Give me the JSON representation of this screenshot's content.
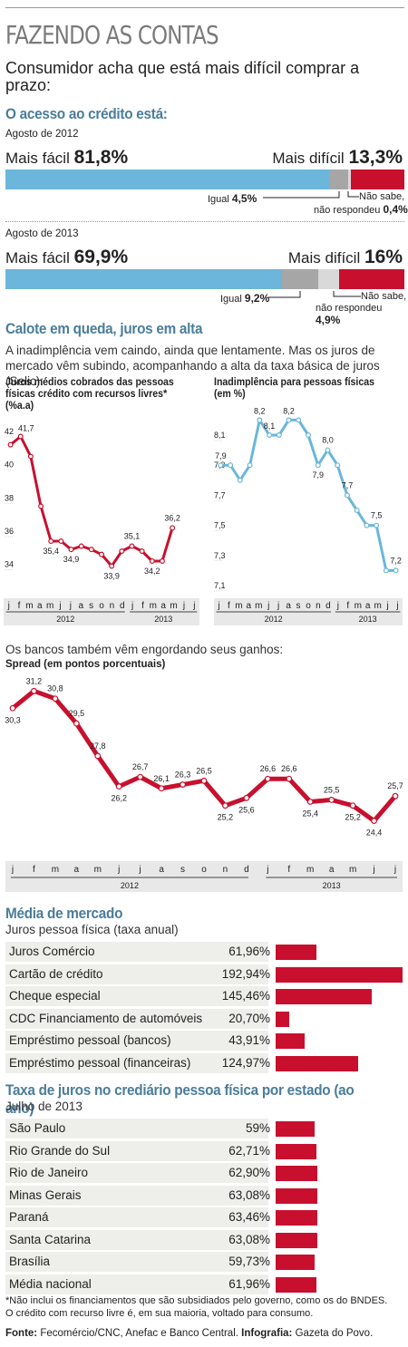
{
  "header": {
    "title": "FAZENDO AS CONTAS",
    "subtitle": "Consumidor acha que está mais difícil comprar a prazo:"
  },
  "credit_access": {
    "heading": "O acesso ao crédito está:",
    "year1": {
      "period": "Agosto de 2012",
      "easier_label": "Mais fácil",
      "easier_value": "81,8%",
      "harder_label": "Mais difícil",
      "harder_value": "13,3%",
      "equal_label": "Igual",
      "equal_value": "4,5%",
      "nao_sabe_1": "Não sabe,",
      "nao_sabe_2": "não respondeu",
      "nao_sabe_value": "0,4%"
    },
    "year2": {
      "period": "Agosto de 2013",
      "easier_label": "Mais fácil",
      "easier_value": "69,9%",
      "harder_label": "Mais difícil",
      "harder_value": "16%",
      "equal_label": "Igual",
      "equal_value": "9,2%",
      "nao_sabe_1": "Não sabe,",
      "nao_sabe_2": "não respondeu",
      "nao_sabe_value": "4,9%"
    },
    "colors": {
      "easier": "#6bb6da",
      "equal": "#a6a6a6",
      "unknown": "#d9d9d9",
      "harder": "#c8102e"
    }
  },
  "section2": {
    "heading": "Calote em queda, juros em alta",
    "paragraph": "A inadimplência vem caindo, ainda que lentamente. Mas os juros de mercado vêm subindo, acompanhando a alta da taxa básica de juros (Selic):",
    "bank_text": "Os bancos também vêm engordando seus ganhos:"
  },
  "months": [
    "j",
    "f",
    "m",
    "a",
    "m",
    "j",
    "j",
    "a",
    "s",
    "o",
    "n",
    "d",
    "j",
    "f",
    "m",
    "a",
    "m",
    "j",
    "j"
  ],
  "years": [
    "2012",
    "2013"
  ],
  "chart_data": [
    {
      "type": "line",
      "title": "Juros médios cobrados das pessoas físicas crédito com recursos livres* (%a.a)",
      "color": "#c8102e",
      "y": [
        41.2,
        41.7,
        40.5,
        37.5,
        35.4,
        35.4,
        34.9,
        35.1,
        34.9,
        34.6,
        33.9,
        34.8,
        35.1,
        34.8,
        34.2,
        34.2,
        36.2
      ],
      "labels": [
        "",
        "41,7",
        "",
        "",
        "35,4",
        "",
        "34,9",
        "",
        "",
        "",
        "33,9",
        "",
        "35,1",
        "",
        "34,2",
        "",
        "36,2"
      ],
      "yticks": [
        "42",
        "40",
        "38",
        "36",
        "34"
      ],
      "ylim": [
        34,
        42
      ]
    },
    {
      "type": "line",
      "title": "Inadimplência para pessoas físicas (em %)",
      "color": "#6bb6da",
      "y": [
        7.9,
        7.9,
        7.8,
        7.9,
        8.2,
        8.1,
        8.1,
        8.2,
        8.2,
        8.1,
        7.9,
        8.0,
        7.9,
        7.7,
        7.6,
        7.5,
        7.5,
        7.2,
        7.2
      ],
      "labels": [
        "7,9",
        "",
        "",
        "",
        "8,2",
        "8,1",
        "",
        "8,2",
        "",
        "",
        "7,9",
        "8,0",
        "",
        "7,7",
        "",
        "",
        "7,5",
        "",
        "7,2"
      ],
      "yticks": [
        "8,1",
        "7,9",
        "7,7",
        "7,5",
        "7,3",
        "7,1"
      ],
      "ylim": [
        7.1,
        8.1
      ]
    },
    {
      "type": "line",
      "title": "Spread (em pontos porcentuais)",
      "color": "#c8102e",
      "y": [
        30.3,
        31.2,
        30.8,
        29.5,
        27.8,
        26.2,
        26.7,
        26.1,
        26.3,
        26.5,
        25.2,
        25.6,
        26.6,
        26.6,
        25.4,
        25.5,
        25.2,
        24.4,
        25.7
      ],
      "labels": [
        "30,3",
        "31,2",
        "30,8",
        "29,5",
        "27,8",
        "26,2",
        "26,7",
        "26,1",
        "26,3",
        "26,5",
        "25,2",
        "25,6",
        "26,6",
        "26,6",
        "25,4",
        "25,5",
        "25,2",
        "24,4",
        "25,7"
      ]
    }
  ],
  "market": {
    "heading": "Média de mercado",
    "subheading": "Juros pessoa física (taxa anual)",
    "rows": [
      {
        "name": "Juros Comércio",
        "value": "61,96%",
        "num": 61.96
      },
      {
        "name": "Cartão de crédito",
        "value": "192,94%",
        "num": 192.94
      },
      {
        "name": "Cheque especial",
        "value": "145,46%",
        "num": 145.46
      },
      {
        "name": "CDC Financiamento de automóveis",
        "value": "20,70%",
        "num": 20.7
      },
      {
        "name": "Empréstimo pessoal (bancos)",
        "value": "43,91%",
        "num": 43.91
      },
      {
        "name": "Empréstimo pessoal (financeiras)",
        "value": "124,97%",
        "num": 124.97
      }
    ]
  },
  "states": {
    "heading": "Taxa de juros no crediário pessoa física por estado (ao ano)",
    "subheading": "Julho de 2013",
    "rows": [
      {
        "name": "São Paulo",
        "value": "59%",
        "num": 59
      },
      {
        "name": "Rio Grande do Sul",
        "value": "62,71%",
        "num": 62.71
      },
      {
        "name": "Rio de Janeiro",
        "value": "62,90%",
        "num": 62.9
      },
      {
        "name": "Minas Gerais",
        "value": "63,08%",
        "num": 63.08
      },
      {
        "name": "Paraná",
        "value": "63,46%",
        "num": 63.46
      },
      {
        "name": "Santa Catarina",
        "value": "63,08%",
        "num": 63.08
      },
      {
        "name": "Brasília",
        "value": "59,73%",
        "num": 59.73
      },
      {
        "name": "Média nacional",
        "value": "61,96%",
        "num": 61.96
      }
    ]
  },
  "footnote": {
    "line1": "*Não inclui os financiamentos que são subsidiados pelo governo, como os do BNDES.",
    "line2": "O crédito com recurso livre é, em sua maioria, voltado para consumo.",
    "source_label": "Fonte:",
    "source_text": "Fecomércio/CNC, Anefac e Banco Central.",
    "info_label": "Infografia:",
    "info_text": "Gazeta do Povo."
  }
}
